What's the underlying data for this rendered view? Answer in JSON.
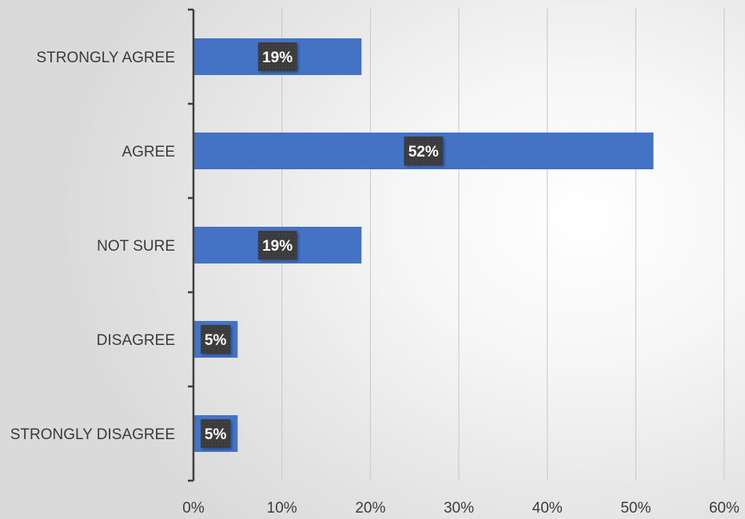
{
  "chart_data": {
    "type": "bar",
    "orientation": "horizontal",
    "categories": [
      "STRONGLY AGREE",
      "AGREE",
      "NOT SURE",
      "DISAGREE",
      "STRONGLY DISAGREE"
    ],
    "values": [
      19,
      52,
      19,
      5,
      5
    ],
    "data_labels": [
      "19%",
      "52%",
      "19%",
      "5%",
      "5%"
    ],
    "x_ticks": [
      "0%",
      "10%",
      "20%",
      "30%",
      "40%",
      "50%",
      "60%"
    ],
    "xlim": [
      0,
      60
    ],
    "title": "",
    "xlabel": "",
    "ylabel": "",
    "grid": "vertical",
    "legend": "none",
    "colors": {
      "bar": "#4472c4",
      "data_label_bg": "#3a3a3a",
      "gridline": "#c8c8c8",
      "axis": "#404040"
    }
  }
}
